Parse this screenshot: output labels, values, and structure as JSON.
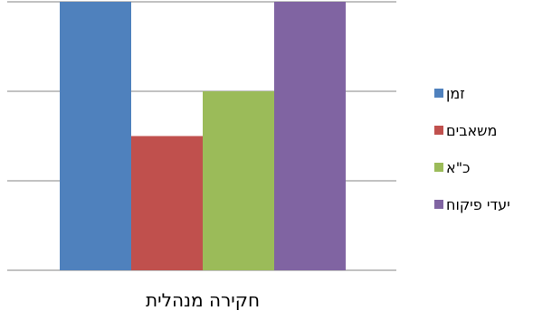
{
  "chart_data": {
    "type": "bar",
    "categories": [
      "חקירה מנהלית"
    ],
    "series": [
      {
        "name": "זמן",
        "values": [
          3
        ],
        "color": "#4F81BD"
      },
      {
        "name": "משאבים",
        "values": [
          1.5
        ],
        "color": "#C0504D"
      },
      {
        "name": "כ\"א",
        "values": [
          2
        ],
        "color": "#9BBB59"
      },
      {
        "name": "יעדי פיקוח",
        "values": [
          3
        ],
        "color": "#8064A2"
      }
    ],
    "ylim": [
      0,
      3
    ],
    "grid": true,
    "legend_position": "right",
    "title": "",
    "xlabel": "",
    "ylabel": ""
  }
}
